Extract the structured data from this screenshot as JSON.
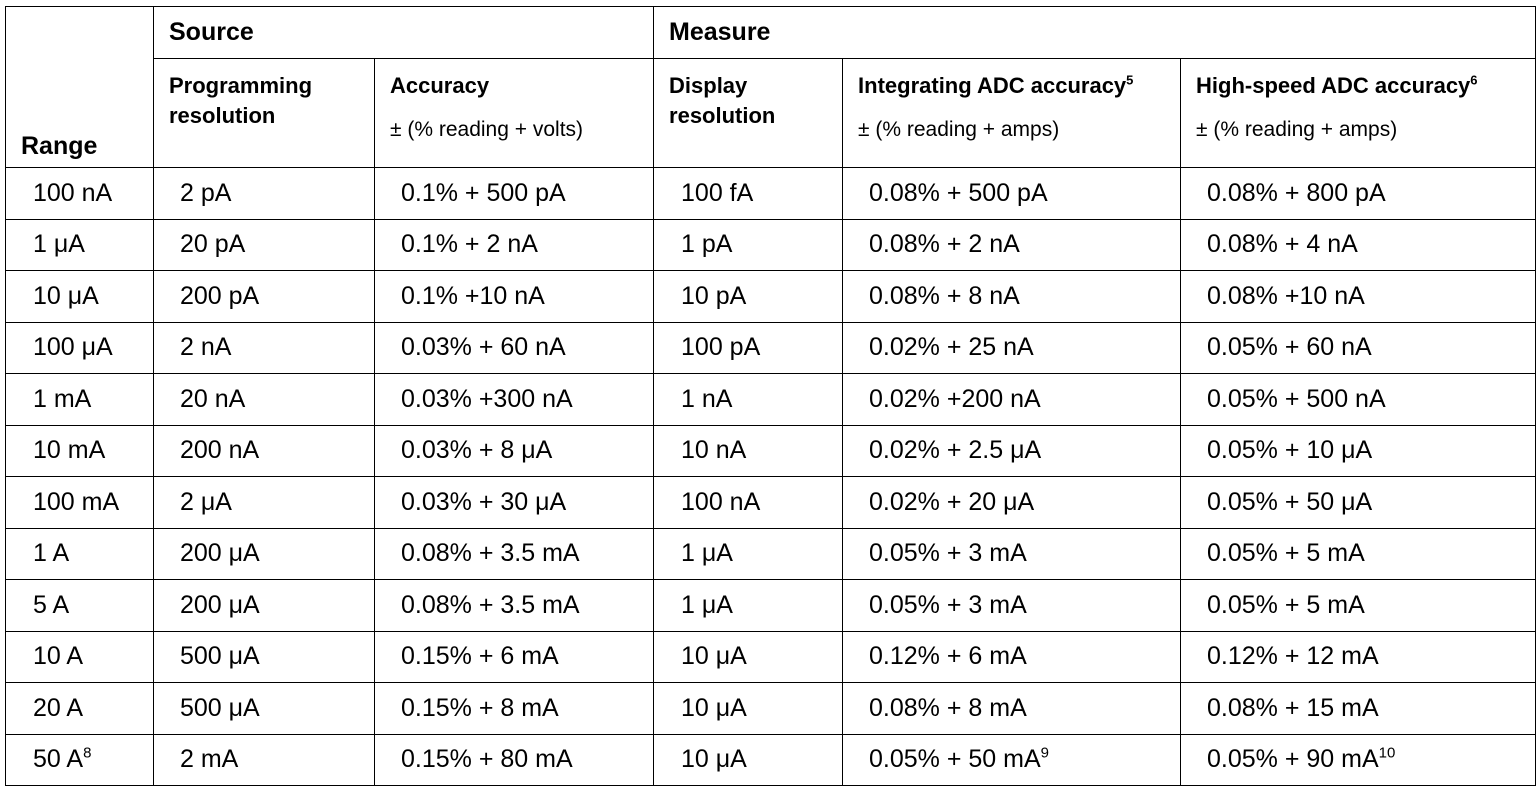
{
  "header": {
    "range": "Range",
    "source": "Source",
    "measure": "Measure",
    "columns": {
      "programming_resolution": "Programming resolution",
      "accuracy": "Accuracy",
      "accuracy_unit": "± (% reading + volts)",
      "display_resolution": "Display resolution",
      "integrating_adc": "Integrating ADC accuracy",
      "integrating_adc_note": "5",
      "integrating_adc_unit": "± (% reading + amps)",
      "high_speed_adc": "High-speed ADC accuracy",
      "high_speed_adc_note": "6",
      "high_speed_adc_unit": "± (% reading + amps)"
    }
  },
  "rows": [
    {
      "range": "100 nA",
      "prog": "2 pA",
      "acc": "0.1% + 500 pA",
      "disp": "100 fA",
      "int": "0.08% + 500 pA",
      "hs": "0.08% + 800 pA"
    },
    {
      "range": "1 μA",
      "prog": "20 pA",
      "acc": "0.1% + 2 nA",
      "disp": "1 pA",
      "int": "0.08% + 2 nA",
      "hs": "0.08% + 4 nA"
    },
    {
      "range": "10 μA",
      "prog": "200 pA",
      "acc": "0.1% +10 nA",
      "disp": "10 pA",
      "int": "0.08% + 8 nA",
      "hs": "0.08% +10 nA"
    },
    {
      "range": "100 μA",
      "prog": "2 nA",
      "acc": "0.03% + 60 nA",
      "disp": "100 pA",
      "int": "0.02% + 25 nA",
      "hs": "0.05% + 60 nA"
    },
    {
      "range": "1 mA",
      "prog": "20 nA",
      "acc": "0.03% +300 nA",
      "disp": "1 nA",
      "int": "0.02% +200 nA",
      "hs": "0.05% + 500 nA"
    },
    {
      "range": "10 mA",
      "prog": "200 nA",
      "acc": "0.03% + 8 μA",
      "disp": "10 nA",
      "int": "0.02% + 2.5 μA",
      "hs": "0.05% + 10 μA"
    },
    {
      "range": "100 mA",
      "prog": "2 μA",
      "acc": "0.03% + 30 μA",
      "disp": "100 nA",
      "int": "0.02% + 20 μA",
      "hs": "0.05% + 50 μA"
    },
    {
      "range": "1 A",
      "prog": "200 μA",
      "acc": "0.08% + 3.5 mA",
      "disp": "1 μA",
      "int": "0.05% + 3 mA",
      "hs": "0.05% + 5 mA"
    },
    {
      "range": "5 A",
      "prog": "200 μA",
      "acc": "0.08% + 3.5 mA",
      "disp": "1 μA",
      "int": "0.05% + 3 mA",
      "hs": "0.05% + 5 mA"
    },
    {
      "range": "10 A",
      "prog": "500 μA",
      "acc": "0.15% + 6 mA",
      "disp": "10 μA",
      "int": "0.12% + 6 mA",
      "hs": "0.12% + 12 mA"
    },
    {
      "range": "20 A",
      "prog": "500 μA",
      "acc": "0.15% + 8 mA",
      "disp": "10 μA",
      "int": "0.08% + 8 mA",
      "hs": "0.08% + 15 mA"
    },
    {
      "range": "50 A",
      "range_note": "8",
      "prog": "2 mA",
      "acc": "0.15% + 80 mA",
      "disp": "10 μA",
      "int": "0.05% + 50 mA",
      "int_note": "9",
      "hs": "0.05% + 90 mA",
      "hs_note": "10"
    }
  ]
}
